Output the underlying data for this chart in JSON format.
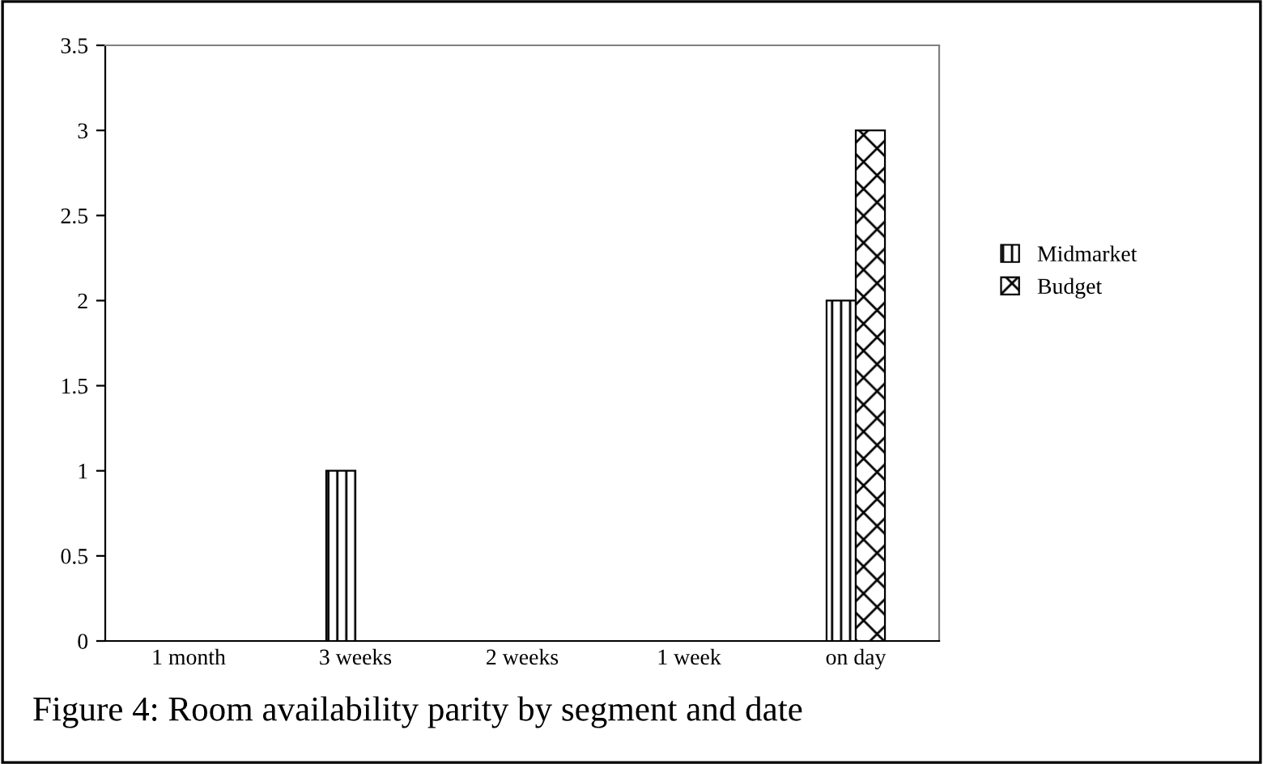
{
  "chart_data": {
    "type": "bar",
    "categories": [
      "1 month",
      "3 weeks",
      "2 weeks",
      "1 week",
      "on day"
    ],
    "series": [
      {
        "name": "Midmarket",
        "color": "#000000",
        "values": [
          0,
          1,
          0,
          0,
          2
        ]
      },
      {
        "name": "Budget",
        "color": "#000000",
        "values": [
          0,
          0,
          0,
          0,
          3
        ]
      }
    ],
    "ylim": [
      0,
      3.5
    ],
    "yticks": [
      0,
      0.5,
      1,
      1.5,
      2,
      2.5,
      3,
      3.5
    ],
    "grid": false,
    "legend": "right",
    "annotations": [
      "Figure 4: Room availability parity by segment and date"
    ]
  }
}
